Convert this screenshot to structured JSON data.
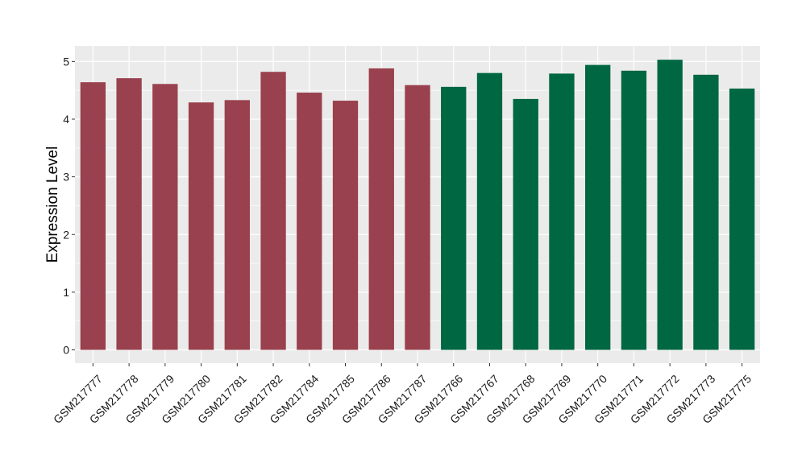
{
  "chart_data": {
    "type": "bar",
    "title": "",
    "xlabel": "",
    "ylabel": "Expression Level",
    "ylim": [
      -0.23,
      5.27
    ],
    "yticks": [
      0,
      1,
      2,
      3,
      4,
      5
    ],
    "grid": true,
    "background_color": "#EBEBEB",
    "gridline_color": "#FFFFFF",
    "categories": [
      "GSM217777",
      "GSM217778",
      "GSM217779",
      "GSM217780",
      "GSM217781",
      "GSM217782",
      "GSM217784",
      "GSM217785",
      "GSM217786",
      "GSM217787",
      "GSM217766",
      "GSM217767",
      "GSM217768",
      "GSM217769",
      "GSM217770",
      "GSM217771",
      "GSM217772",
      "GSM217773",
      "GSM217775"
    ],
    "values": [
      4.64,
      4.71,
      4.61,
      4.29,
      4.33,
      4.82,
      4.46,
      4.32,
      4.88,
      4.59,
      4.56,
      4.8,
      4.35,
      4.79,
      4.94,
      4.84,
      5.03,
      4.77,
      4.53
    ],
    "bar_colors": [
      "#99414E",
      "#99414E",
      "#99414E",
      "#99414E",
      "#99414E",
      "#99414E",
      "#99414E",
      "#99414E",
      "#99414E",
      "#99414E",
      "#006743",
      "#006743",
      "#006743",
      "#006743",
      "#006743",
      "#006743",
      "#006743",
      "#006743",
      "#006743"
    ]
  }
}
